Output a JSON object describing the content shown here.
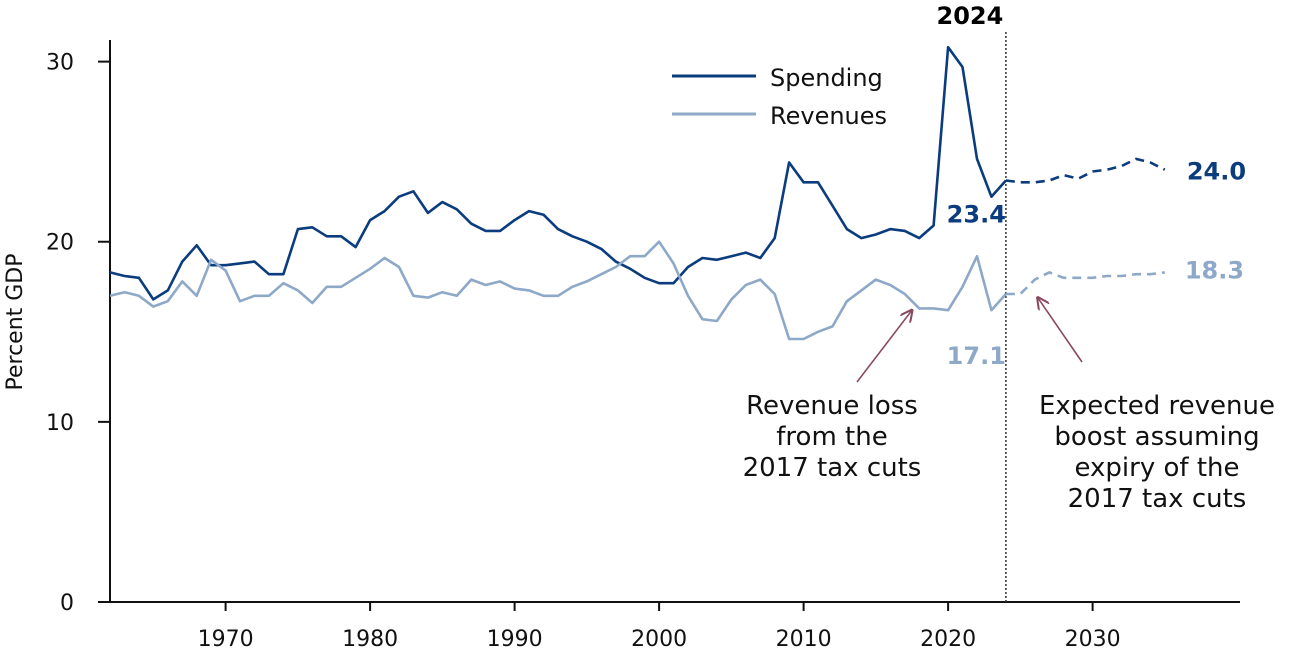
{
  "chart_data": {
    "type": "line",
    "title": "",
    "xlabel": "",
    "ylabel": "Percent GDP",
    "xlim": [
      1962,
      2037
    ],
    "ylim": [
      0,
      30
    ],
    "x_ticks": [
      1970,
      1980,
      1990,
      2000,
      2010,
      2020,
      2030
    ],
    "x_tick_labels": [
      "1970",
      "1980",
      "1990",
      "2000",
      "2010",
      "2020",
      "2030"
    ],
    "y_ticks": [
      0,
      10,
      20,
      30
    ],
    "y_tick_labels": [
      "0",
      "10",
      "20",
      "30"
    ],
    "colors": {
      "spending": "#0b3c7d",
      "revenues": "#8ea8c8",
      "arrow": "#8a4a5e",
      "divider": "#333333"
    },
    "legend": {
      "placement": "top-center",
      "entries": [
        "Spending",
        "Revenues"
      ]
    },
    "marker": {
      "x": 2024,
      "label": "2024"
    },
    "series": [
      {
        "name": "Spending",
        "historical": {
          "x": [
            1962,
            1963,
            1964,
            1965,
            1966,
            1967,
            1968,
            1969,
            1970,
            1971,
            1972,
            1973,
            1974,
            1975,
            1976,
            1977,
            1978,
            1979,
            1980,
            1981,
            1982,
            1983,
            1984,
            1985,
            1986,
            1987,
            1988,
            1989,
            1990,
            1991,
            1992,
            1993,
            1994,
            1995,
            1996,
            1997,
            1998,
            1999,
            2000,
            2001,
            2002,
            2003,
            2004,
            2005,
            2006,
            2007,
            2008,
            2009,
            2010,
            2011,
            2012,
            2013,
            2014,
            2015,
            2016,
            2017,
            2018,
            2019,
            2020,
            2021,
            2022,
            2023,
            2024
          ],
          "y": [
            18.3,
            18.1,
            18.0,
            16.8,
            17.3,
            18.9,
            19.8,
            18.7,
            18.7,
            18.8,
            18.9,
            18.2,
            18.2,
            20.7,
            20.8,
            20.3,
            20.3,
            19.7,
            21.2,
            21.7,
            22.5,
            22.8,
            21.6,
            22.2,
            21.8,
            21.0,
            20.6,
            20.6,
            21.2,
            21.7,
            21.5,
            20.7,
            20.3,
            20.0,
            19.6,
            18.9,
            18.5,
            18.0,
            17.7,
            17.7,
            18.6,
            19.1,
            19.0,
            19.2,
            19.4,
            19.1,
            20.2,
            24.4,
            23.3,
            23.3,
            22.0,
            20.7,
            20.2,
            20.4,
            20.7,
            20.6,
            20.2,
            20.9,
            30.8,
            29.7,
            24.6,
            22.5,
            23.4
          ]
        },
        "projection": {
          "x": [
            2024,
            2025,
            2026,
            2027,
            2028,
            2029,
            2030,
            2031,
            2032,
            2033,
            2034,
            2035
          ],
          "y": [
            23.4,
            23.3,
            23.3,
            23.4,
            23.7,
            23.5,
            23.9,
            24.0,
            24.2,
            24.6,
            24.4,
            24.0
          ]
        },
        "labels": [
          {
            "text": "23.4",
            "x": 2024,
            "y": 23.4
          },
          {
            "text": "24.0",
            "x": 2035,
            "y": 24.0
          }
        ]
      },
      {
        "name": "Revenues",
        "historical": {
          "x": [
            1962,
            1963,
            1964,
            1965,
            1966,
            1967,
            1968,
            1969,
            1970,
            1971,
            1972,
            1973,
            1974,
            1975,
            1976,
            1977,
            1978,
            1979,
            1980,
            1981,
            1982,
            1983,
            1984,
            1985,
            1986,
            1987,
            1988,
            1989,
            1990,
            1991,
            1992,
            1993,
            1994,
            1995,
            1996,
            1997,
            1998,
            1999,
            2000,
            2001,
            2002,
            2003,
            2004,
            2005,
            2006,
            2007,
            2008,
            2009,
            2010,
            2011,
            2012,
            2013,
            2014,
            2015,
            2016,
            2017,
            2018,
            2019,
            2020,
            2021,
            2022,
            2023,
            2024
          ],
          "y": [
            17.0,
            17.2,
            17.0,
            16.4,
            16.7,
            17.8,
            17.0,
            19.0,
            18.4,
            16.7,
            17.0,
            17.0,
            17.7,
            17.3,
            16.6,
            17.5,
            17.5,
            18.0,
            18.5,
            19.1,
            18.6,
            17.0,
            16.9,
            17.2,
            17.0,
            17.9,
            17.6,
            17.8,
            17.4,
            17.3,
            17.0,
            17.0,
            17.5,
            17.8,
            18.2,
            18.6,
            19.2,
            19.2,
            20.0,
            18.8,
            17.0,
            15.7,
            15.6,
            16.8,
            17.6,
            17.9,
            17.1,
            14.6,
            14.6,
            15.0,
            15.3,
            16.7,
            17.3,
            17.9,
            17.6,
            17.1,
            16.3,
            16.3,
            16.2,
            17.5,
            19.2,
            16.2,
            17.1
          ]
        },
        "projection": {
          "x": [
            2024,
            2025,
            2026,
            2027,
            2028,
            2029,
            2030,
            2031,
            2032,
            2033,
            2034,
            2035
          ],
          "y": [
            17.1,
            17.1,
            17.9,
            18.3,
            18.0,
            18.0,
            18.0,
            18.1,
            18.1,
            18.2,
            18.2,
            18.3
          ]
        },
        "labels": [
          {
            "text": "17.1",
            "x": 2024,
            "y": 17.1
          },
          {
            "text": "18.3",
            "x": 2035,
            "y": 18.3
          }
        ]
      }
    ],
    "annotations": [
      {
        "lines": [
          "Revenue loss",
          "from the",
          "2017 tax cuts"
        ],
        "arrow_to": {
          "x": 2017.5,
          "y": 16.2
        }
      },
      {
        "lines": [
          "Expected revenue",
          "boost assuming",
          "expiry of the",
          "2017 tax cuts"
        ],
        "arrow_to": {
          "x": 2026.2,
          "y": 16.9
        }
      }
    ]
  }
}
